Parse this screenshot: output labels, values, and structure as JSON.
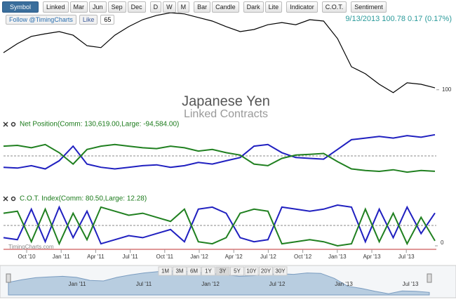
{
  "toolbar": [
    [
      "Symbol"
    ],
    [
      "Linked",
      "Mar",
      "Jun",
      "Sep",
      "Dec"
    ],
    [
      "D",
      "W",
      "M"
    ],
    [
      "Bar",
      "Candle"
    ],
    [
      "Dark",
      "Lite"
    ],
    [
      "Indicator"
    ],
    [
      "C.O.T."
    ],
    [
      "Sentiment"
    ]
  ],
  "social": {
    "follow": "Follow @TimingCharts",
    "like": "Like",
    "count": "65"
  },
  "quote": "9/13/2013 100.78 0.17 (0.17%)",
  "title": "Japanese Yen",
  "subtitle": "Linked Contracts",
  "watermark": "TimingCharts.com",
  "price_chart": {
    "type": "line",
    "color": "#000000",
    "ylim": [
      97,
      134
    ],
    "yticks": [
      100
    ],
    "values": [
      115.5,
      119.3,
      122.3,
      123.4,
      124.3,
      122.8,
      118.4,
      117.6,
      122.8,
      126.4,
      129.3,
      131.1,
      132.2,
      131.7,
      130.2,
      128.7,
      126.4,
      124.3,
      125.2,
      127.2,
      128.1,
      127.2,
      129.3,
      128.7,
      121.4,
      109.6,
      106.7,
      102.3,
      98.8,
      102.9,
      102.3,
      100.78
    ]
  },
  "net_position": {
    "type": "line",
    "label": "Net Position(Comm: 130,619.00,Large: -94,584.00)",
    "ylim": [
      -160000,
      160000
    ],
    "series": [
      {
        "color": "#2020c0",
        "values": [
          -70000,
          -75000,
          -60000,
          -80000,
          -30000,
          60000,
          -50000,
          -70000,
          -80000,
          -70000,
          -60000,
          -55000,
          -70000,
          -60000,
          -40000,
          -50000,
          -30000,
          -10000,
          60000,
          70000,
          20000,
          -10000,
          -15000,
          -20000,
          40000,
          100000,
          110000,
          120000,
          110000,
          125000,
          115000,
          130619
        ]
      },
      {
        "color": "#208020",
        "values": [
          60000,
          65000,
          50000,
          70000,
          20000,
          -50000,
          40000,
          60000,
          70000,
          60000,
          50000,
          45000,
          60000,
          50000,
          30000,
          40000,
          20000,
          5000,
          -50000,
          -60000,
          -15000,
          5000,
          10000,
          15000,
          -35000,
          -80000,
          -90000,
          -95000,
          -85000,
          -100000,
          -90000,
          -94584
        ]
      }
    ]
  },
  "cot_index": {
    "type": "line",
    "label": "C.O.T. Index(Comm: 80.50,Large: 12.28)",
    "ylim": [
      0,
      100
    ],
    "yticks": [
      0
    ],
    "series": [
      {
        "color": "#2020c0",
        "values": [
          20,
          15,
          90,
          10,
          95,
          20,
          85,
          5,
          15,
          25,
          20,
          30,
          40,
          10,
          90,
          95,
          80,
          20,
          10,
          15,
          95,
          90,
          85,
          90,
          100,
          95,
          10,
          90,
          20,
          95,
          30,
          80.5
        ]
      },
      {
        "color": "#208020",
        "values": [
          80,
          85,
          10,
          90,
          5,
          80,
          15,
          95,
          85,
          75,
          80,
          70,
          60,
          90,
          10,
          5,
          20,
          80,
          90,
          85,
          5,
          10,
          15,
          10,
          0,
          5,
          90,
          10,
          80,
          5,
          70,
          12.28
        ]
      }
    ]
  },
  "x_axis": [
    "Oct '10",
    "Jan '11",
    "Apr '11",
    "Jul '11",
    "Oct '11",
    "Jan '12",
    "Apr '12",
    "Jul '12",
    "Oct '12",
    "Jan '13",
    "Apr '13",
    "Jul '13"
  ],
  "range_buttons": [
    "1M",
    "3M",
    "6M",
    "1Y",
    "3Y",
    "5Y",
    "10Y",
    "20Y",
    "30Y"
  ],
  "navigator": [
    "Jan '11",
    "Jul '11",
    "Jan '12",
    "Jul '12",
    "Jan '13",
    "Jul '13"
  ]
}
